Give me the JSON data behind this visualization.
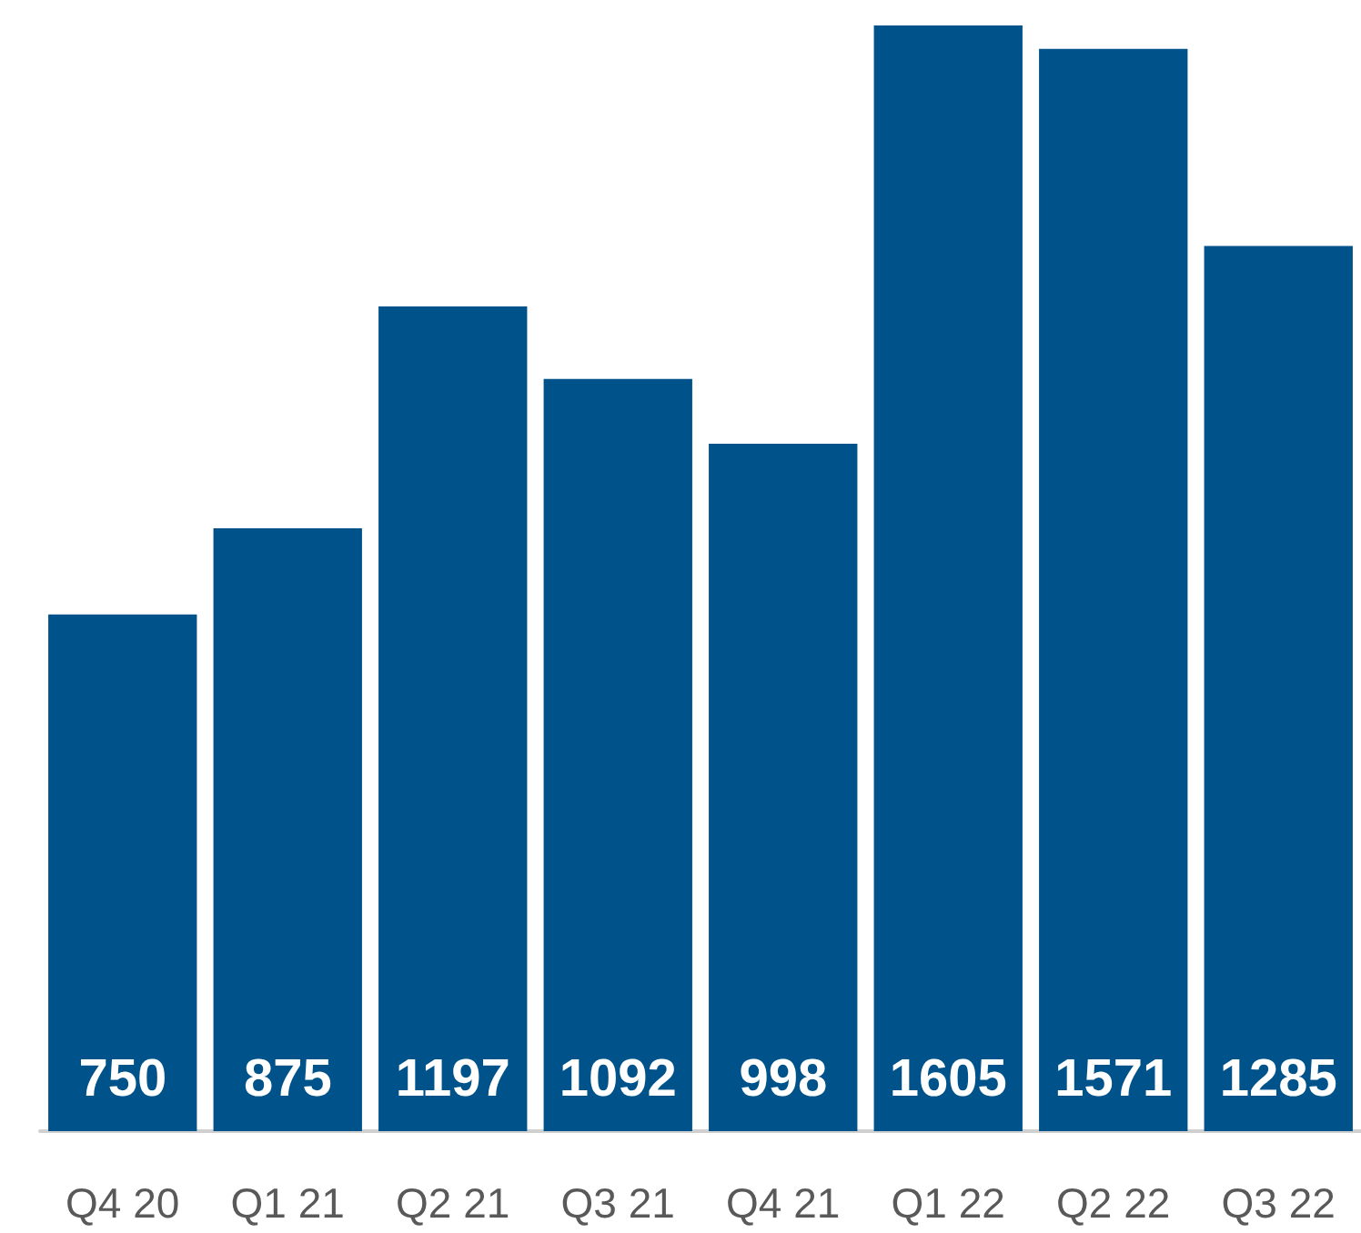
{
  "chart_data": {
    "type": "bar",
    "categories": [
      "Q4 20",
      "Q1 21",
      "Q2 21",
      "Q3 21",
      "Q4 21",
      "Q1 22",
      "Q2 22",
      "Q3 22"
    ],
    "values": [
      750,
      875,
      1197,
      1092,
      998,
      1605,
      1571,
      1285
    ],
    "color": "#00538a",
    "data_labels": true,
    "grid": false
  }
}
